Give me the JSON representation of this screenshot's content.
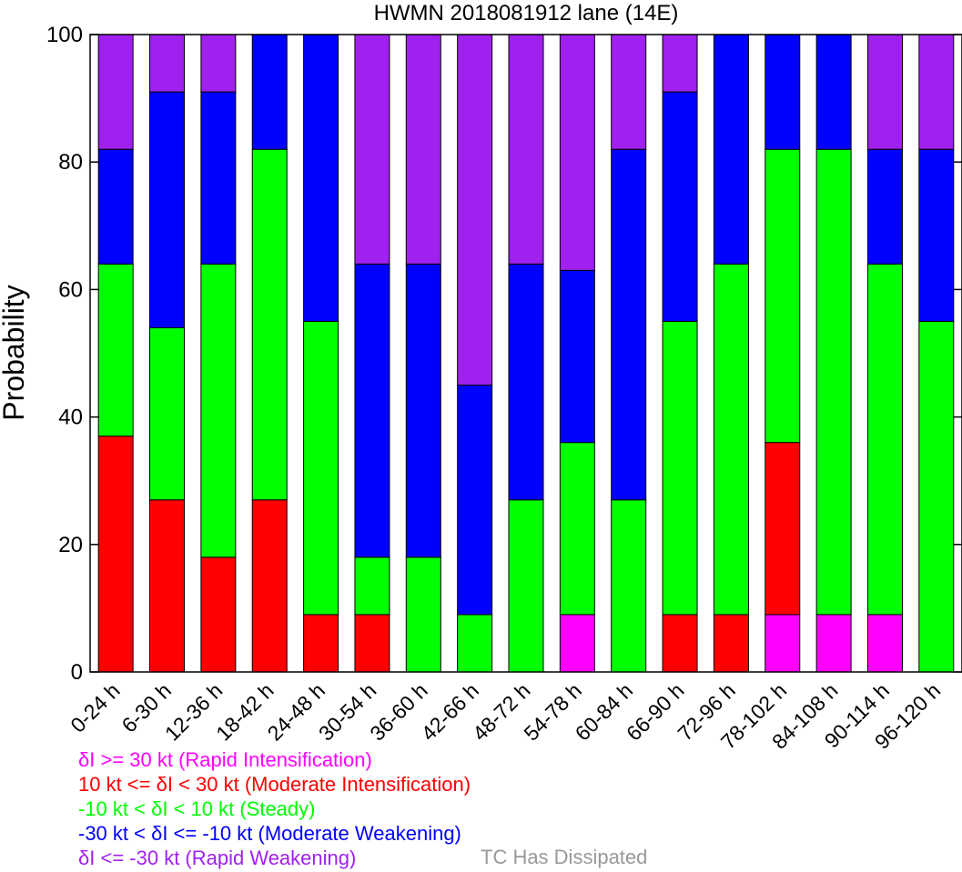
{
  "chart_data": {
    "type": "bar",
    "stacked": true,
    "title": "HWMN 2018081912 lane (14E)",
    "ylabel": "Probability",
    "ylim": [
      0,
      100
    ],
    "yticks": [
      0,
      20,
      40,
      60,
      80,
      100
    ],
    "categories": [
      "0-24 h",
      "6-30 h",
      "12-36 h",
      "18-42 h",
      "24-48 h",
      "30-54 h",
      "36-60 h",
      "42-66 h",
      "48-72 h",
      "54-78 h",
      "60-84 h",
      "66-90 h",
      "72-96 h",
      "78-102 h",
      "84-108 h",
      "90-114 h",
      "96-120 h"
    ],
    "series": [
      {
        "name": "δI >= 30 kt (Rapid Intensification)",
        "color": "#ff00ff",
        "values": [
          0,
          0,
          0,
          0,
          0,
          0,
          0,
          0,
          0,
          9,
          0,
          0,
          0,
          9,
          9,
          9,
          0
        ]
      },
      {
        "name": "10 kt <= δI < 30 kt (Moderate Intensification)",
        "color": "#ff0000",
        "values": [
          37,
          27,
          18,
          27,
          9,
          9,
          0,
          0,
          0,
          0,
          0,
          9,
          9,
          27,
          0,
          0,
          0
        ]
      },
      {
        "name": "-10 kt < δI < 10 kt (Steady)",
        "color": "#00ff00",
        "values": [
          27,
          27,
          46,
          55,
          46,
          9,
          18,
          9,
          27,
          27,
          27,
          46,
          55,
          46,
          73,
          55,
          55
        ]
      },
      {
        "name": "-30 kt < δI <= -10 kt (Moderate Weakening)",
        "color": "#0000ff",
        "values": [
          18,
          37,
          27,
          18,
          45,
          46,
          46,
          36,
          37,
          27,
          55,
          36,
          36,
          18,
          18,
          18,
          27
        ]
      },
      {
        "name": "δI <= -30 kt (Rapid Weakening)",
        "color": "#a020f0",
        "values": [
          18,
          9,
          9,
          0,
          0,
          36,
          36,
          55,
          36,
          37,
          18,
          9,
          0,
          0,
          0,
          18,
          18
        ]
      }
    ],
    "dissipated": {
      "name": "TC Has Dissipated",
      "color": "#999999",
      "values": [
        0,
        0,
        0,
        0,
        0,
        0,
        0,
        0,
        0,
        0,
        0,
        0,
        0,
        0,
        0,
        0,
        0
      ]
    },
    "grid": false,
    "legend_position": "bottom-left"
  }
}
